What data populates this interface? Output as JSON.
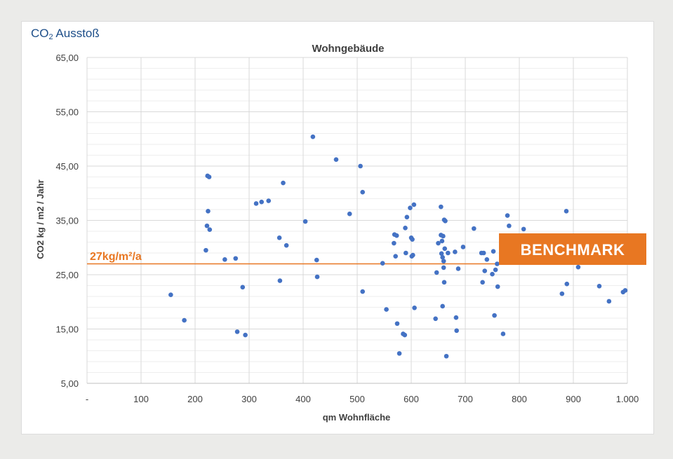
{
  "brand": {
    "prefix": "CO",
    "sub": "2",
    "suffix": " Ausstoß"
  },
  "colors": {
    "points": "#4472c4",
    "benchmark": "#e87722",
    "grid_major": "#d9d9d9",
    "grid_minor": "#eeeeee"
  },
  "chart_data": {
    "type": "scatter",
    "title": "Wohngebäude",
    "xlabel": "qm Wohnfläche",
    "ylabel": "CO2 kg / m2 / Jahr",
    "xlim": [
      0,
      1000
    ],
    "ylim": [
      5,
      65
    ],
    "x_ticks": [
      {
        "v": 0,
        "label": "-"
      },
      {
        "v": 100,
        "label": "100"
      },
      {
        "v": 200,
        "label": "200"
      },
      {
        "v": 300,
        "label": "300"
      },
      {
        "v": 400,
        "label": "400"
      },
      {
        "v": 500,
        "label": "500"
      },
      {
        "v": 600,
        "label": "600"
      },
      {
        "v": 700,
        "label": "700"
      },
      {
        "v": 800,
        "label": "800"
      },
      {
        "v": 900,
        "label": "900"
      },
      {
        "v": 1000,
        "label": "1.000"
      }
    ],
    "y_ticks": [
      {
        "v": 5,
        "label": "5,00"
      },
      {
        "v": 15,
        "label": "15,00"
      },
      {
        "v": 25,
        "label": "25,00"
      },
      {
        "v": 35,
        "label": "35,00"
      },
      {
        "v": 45,
        "label": "45,00"
      },
      {
        "v": 55,
        "label": "55,00"
      },
      {
        "v": 65,
        "label": "65,00"
      }
    ],
    "y_minor_step": 2,
    "benchmark": {
      "value": 27,
      "label": "27kg/m²/a",
      "box_text": "BENCHMARK"
    },
    "points": [
      {
        "x": 155,
        "y": 21.3
      },
      {
        "x": 180,
        "y": 16.6
      },
      {
        "x": 220,
        "y": 29.5
      },
      {
        "x": 222,
        "y": 34.0
      },
      {
        "x": 223,
        "y": 43.2
      },
      {
        "x": 224,
        "y": 36.7
      },
      {
        "x": 226,
        "y": 43.0
      },
      {
        "x": 227,
        "y": 33.3
      },
      {
        "x": 255,
        "y": 27.8
      },
      {
        "x": 275,
        "y": 28.0
      },
      {
        "x": 278,
        "y": 14.5
      },
      {
        "x": 288,
        "y": 22.7
      },
      {
        "x": 293,
        "y": 13.9
      },
      {
        "x": 313,
        "y": 38.1
      },
      {
        "x": 323,
        "y": 38.4
      },
      {
        "x": 336,
        "y": 38.6
      },
      {
        "x": 356,
        "y": 31.8
      },
      {
        "x": 357,
        "y": 23.9
      },
      {
        "x": 363,
        "y": 41.9
      },
      {
        "x": 369,
        "y": 30.4
      },
      {
        "x": 404,
        "y": 34.8
      },
      {
        "x": 418,
        "y": 50.4
      },
      {
        "x": 425,
        "y": 27.7
      },
      {
        "x": 426,
        "y": 24.6
      },
      {
        "x": 461,
        "y": 46.2
      },
      {
        "x": 486,
        "y": 36.2
      },
      {
        "x": 506,
        "y": 45.0
      },
      {
        "x": 510,
        "y": 40.2
      },
      {
        "x": 510,
        "y": 21.9
      },
      {
        "x": 547,
        "y": 27.1
      },
      {
        "x": 554,
        "y": 18.6
      },
      {
        "x": 568,
        "y": 30.8
      },
      {
        "x": 569,
        "y": 32.4
      },
      {
        "x": 571,
        "y": 28.4
      },
      {
        "x": 573,
        "y": 32.2
      },
      {
        "x": 574,
        "y": 16.0
      },
      {
        "x": 578,
        "y": 10.5
      },
      {
        "x": 585,
        "y": 14.1
      },
      {
        "x": 588,
        "y": 13.9
      },
      {
        "x": 589,
        "y": 33.6
      },
      {
        "x": 590,
        "y": 29.0
      },
      {
        "x": 592,
        "y": 35.6
      },
      {
        "x": 598,
        "y": 37.3
      },
      {
        "x": 600,
        "y": 31.8
      },
      {
        "x": 601,
        "y": 28.4
      },
      {
        "x": 602,
        "y": 31.5
      },
      {
        "x": 603,
        "y": 28.6
      },
      {
        "x": 605,
        "y": 37.9
      },
      {
        "x": 606,
        "y": 18.9
      },
      {
        "x": 645,
        "y": 16.9
      },
      {
        "x": 647,
        "y": 25.4
      },
      {
        "x": 650,
        "y": 30.8
      },
      {
        "x": 655,
        "y": 37.5
      },
      {
        "x": 655,
        "y": 32.3
      },
      {
        "x": 656,
        "y": 28.9
      },
      {
        "x": 657,
        "y": 31.2
      },
      {
        "x": 658,
        "y": 28.2
      },
      {
        "x": 658,
        "y": 19.2
      },
      {
        "x": 659,
        "y": 32.1
      },
      {
        "x": 660,
        "y": 26.3
      },
      {
        "x": 660,
        "y": 27.5
      },
      {
        "x": 661,
        "y": 35.1
      },
      {
        "x": 661,
        "y": 23.6
      },
      {
        "x": 662,
        "y": 29.8
      },
      {
        "x": 663,
        "y": 34.9
      },
      {
        "x": 665,
        "y": 10.0
      },
      {
        "x": 668,
        "y": 29.0
      },
      {
        "x": 681,
        "y": 29.2
      },
      {
        "x": 683,
        "y": 17.1
      },
      {
        "x": 684,
        "y": 14.7
      },
      {
        "x": 687,
        "y": 26.1
      },
      {
        "x": 696,
        "y": 30.1
      },
      {
        "x": 716,
        "y": 33.5
      },
      {
        "x": 730,
        "y": 29.0
      },
      {
        "x": 732,
        "y": 23.6
      },
      {
        "x": 734,
        "y": 29.0
      },
      {
        "x": 736,
        "y": 25.7
      },
      {
        "x": 740,
        "y": 27.8
      },
      {
        "x": 750,
        "y": 25.1
      },
      {
        "x": 752,
        "y": 29.3
      },
      {
        "x": 754,
        "y": 17.5
      },
      {
        "x": 756,
        "y": 25.9
      },
      {
        "x": 759,
        "y": 27.0
      },
      {
        "x": 760,
        "y": 22.8
      },
      {
        "x": 770,
        "y": 14.1
      },
      {
        "x": 778,
        "y": 35.9
      },
      {
        "x": 781,
        "y": 34.0
      },
      {
        "x": 808,
        "y": 33.4
      },
      {
        "x": 879,
        "y": 21.5
      },
      {
        "x": 887,
        "y": 36.7
      },
      {
        "x": 888,
        "y": 23.3
      },
      {
        "x": 909,
        "y": 26.4
      },
      {
        "x": 948,
        "y": 22.9
      },
      {
        "x": 966,
        "y": 20.1
      },
      {
        "x": 992,
        "y": 21.8
      },
      {
        "x": 996,
        "y": 22.1
      }
    ]
  }
}
